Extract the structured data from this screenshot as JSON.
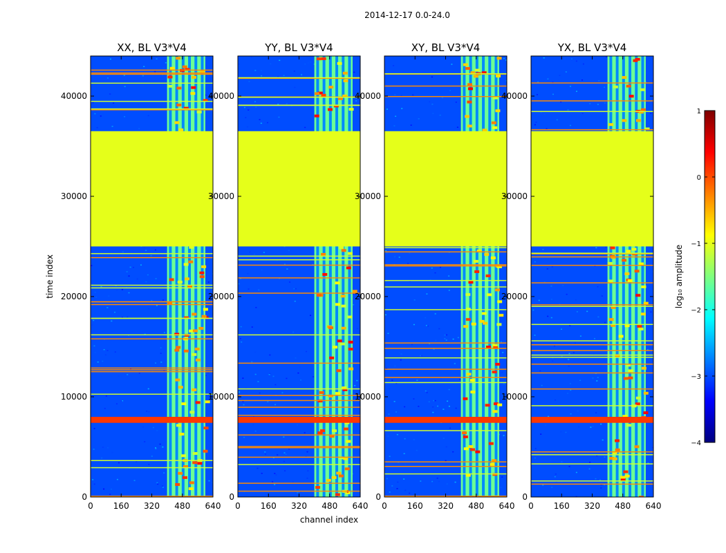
{
  "chart_data": {
    "type": "heatmap",
    "suptitle": "2014-12-17 0.0-24.0",
    "xlabel": "channel index",
    "ylabel": "time index",
    "xlim": [
      0,
      640
    ],
    "ylim": [
      0,
      44000
    ],
    "xticks": [
      0,
      160,
      320,
      480,
      640
    ],
    "yticks": [
      0,
      10000,
      20000,
      30000,
      40000
    ],
    "colorbar": {
      "label": "log₁₀ amplitude",
      "range": [
        -4,
        1
      ],
      "ticks": [
        1,
        0,
        -1,
        -2,
        -3,
        -4
      ],
      "tick_labels": [
        "1",
        "0",
        "−1",
        "−2",
        "−3",
        "−4"
      ],
      "colors": [
        "#00007f",
        "#0000ff",
        "#007fff",
        "#00ffff",
        "#7fff7f",
        "#ffff00",
        "#ff7f00",
        "#ff0000",
        "#7f0000"
      ]
    },
    "panels": [
      {
        "title": "XX, BL V3*V4",
        "background": -3.0,
        "flagged_rows": [
          [
            25000,
            36500
          ]
        ],
        "flag_value": -1.0,
        "high_channels": [
          400,
          600
        ],
        "band_value": -1.6
      },
      {
        "title": "YY, BL V3*V4",
        "background": -3.0,
        "flagged_rows": [
          [
            25000,
            36500
          ]
        ],
        "flag_value": -1.0,
        "high_channels": [
          400,
          600
        ],
        "band_value": -1.6
      },
      {
        "title": "XY, BL V3*V4",
        "background": -3.0,
        "flagged_rows": [
          [
            25000,
            36500
          ]
        ],
        "flag_value": -1.0,
        "high_channels": [
          400,
          600
        ],
        "band_value": -1.6
      },
      {
        "title": "YX, BL V3*V4",
        "background": -3.0,
        "flagged_rows": [
          [
            25000,
            36500
          ]
        ],
        "flag_value": -1.0,
        "high_channels": [
          400,
          600
        ],
        "band_value": -1.6
      }
    ]
  }
}
